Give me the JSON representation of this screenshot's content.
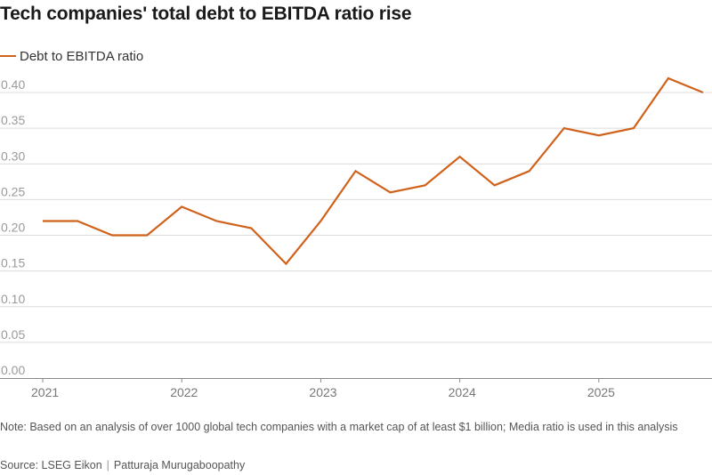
{
  "title": "Tech companies' total debt to EBITDA ratio rise",
  "note": "Note: Based on an analysis of over 1000 global tech companies with a market cap of at least $1 billion; Media ratio is used in this analysis",
  "source": "Source: LSEG Eikon",
  "author": "Patturaja Murugaboopathy",
  "colors": {
    "line": "#d0621c",
    "grid": "#dcdcdc",
    "axis": "#888888"
  },
  "chart_data": {
    "type": "line",
    "title": "Tech companies' total debt to EBITDA ratio rise",
    "xlabel": "",
    "ylabel": "",
    "ylim": [
      0,
      0.4
    ],
    "yticks": [
      0.0,
      0.05,
      0.1,
      0.15,
      0.2,
      0.25,
      0.3,
      0.35,
      0.4
    ],
    "ytick_labels": [
      "0.00",
      "0.05",
      "0.10",
      "0.15",
      "0.20",
      "0.25",
      "0.30",
      "0.35",
      "0.40"
    ],
    "xticks": [
      "2021",
      "2022",
      "2023",
      "2024",
      "2025"
    ],
    "x": [
      "2021-Q1",
      "2021-Q2",
      "2021-Q3",
      "2021-Q4",
      "2022-Q1",
      "2022-Q2",
      "2022-Q3",
      "2022-Q4",
      "2023-Q1",
      "2023-Q2",
      "2023-Q3",
      "2023-Q4",
      "2024-Q1",
      "2024-Q2",
      "2024-Q3",
      "2024-Q4",
      "2025-Q1",
      "2025-Q2",
      "2025-Q3",
      "2025-Q4"
    ],
    "grid": true,
    "legend_position": "top-left",
    "series": [
      {
        "name": "Debt to EBITDA ratio",
        "values": [
          0.22,
          0.22,
          0.2,
          0.2,
          0.24,
          0.22,
          0.21,
          0.16,
          0.22,
          0.29,
          0.26,
          0.27,
          0.31,
          0.27,
          0.29,
          0.35,
          0.34,
          0.35,
          0.42,
          0.4
        ]
      }
    ]
  }
}
